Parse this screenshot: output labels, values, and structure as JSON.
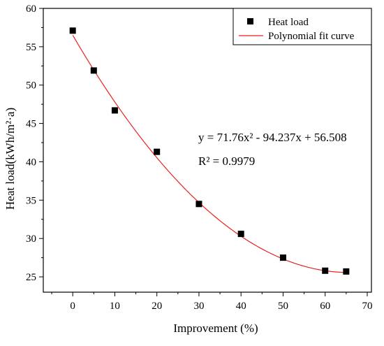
{
  "chart_data": {
    "type": "scatter",
    "title": "",
    "xlabel": "Improvement (%)",
    "ylabel": "Heat load(kWh/m²·a)",
    "xlim": [
      -7,
      71
    ],
    "ylim": [
      23,
      60
    ],
    "x_ticks": [
      0,
      10,
      20,
      30,
      40,
      50,
      60,
      70
    ],
    "y_ticks": [
      25,
      30,
      35,
      40,
      45,
      50,
      55,
      60
    ],
    "grid": false,
    "legend_position": "top-right",
    "series": [
      {
        "name": "Heat load",
        "kind": "scatter",
        "marker": "square",
        "color": "#000000",
        "points": [
          {
            "x": 0,
            "y": 57.1
          },
          {
            "x": 5,
            "y": 51.9
          },
          {
            "x": 10,
            "y": 46.7
          },
          {
            "x": 20,
            "y": 41.3
          },
          {
            "x": 30,
            "y": 34.5
          },
          {
            "x": 40,
            "y": 30.6
          },
          {
            "x": 50,
            "y": 27.5
          },
          {
            "x": 60,
            "y": 25.8
          },
          {
            "x": 65,
            "y": 25.7
          }
        ]
      },
      {
        "name": "Polynomial fit curve",
        "kind": "line",
        "color": "#e8221f",
        "fit": {
          "a": 71.76,
          "b": -94.237,
          "c": 56.508,
          "x_range": [
            0,
            65
          ]
        }
      }
    ],
    "annotations": [
      {
        "id": "equation",
        "text": "y = 71.76x² - 94.237x + 56.508"
      },
      {
        "id": "r2",
        "text": "R² = 0.9979"
      }
    ]
  }
}
